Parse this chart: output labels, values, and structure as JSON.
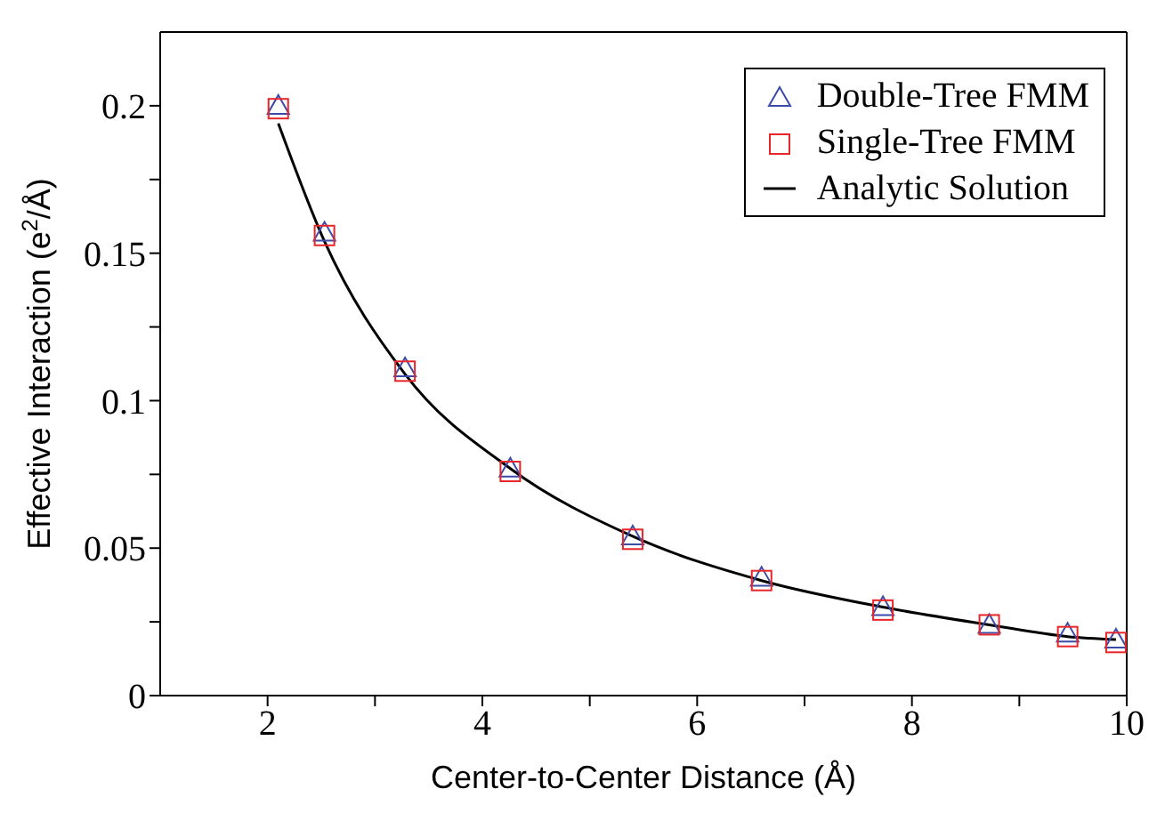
{
  "chart_data": {
    "type": "scatter",
    "xlabel": "Center-to-Center Distance (Å)",
    "ylabel": "Effective Interaction (e$^{2}$/Å)",
    "xlim": [
      1,
      10
    ],
    "ylim": [
      0,
      0.225
    ],
    "xticks": [
      2,
      {
        "value": 3,
        "label": null
      },
      4,
      {
        "value": 5,
        "label": null
      },
      6,
      {
        "value": 7,
        "label": null
      },
      8,
      {
        "value": 9,
        "label": null
      },
      10
    ],
    "yticks": [
      0,
      {
        "value": 0.025,
        "label": null
      },
      0.05,
      {
        "value": 0.075,
        "label": null
      },
      0.1,
      {
        "value": 0.125,
        "label": null
      },
      0.15,
      {
        "value": 0.175,
        "label": null
      },
      0.2
    ],
    "legend": "top right",
    "series": [
      {
        "name": "Double-Tree FMM",
        "marker": "triangle",
        "color": "#3b4ba8",
        "x": [
          2.1,
          2.53,
          3.28,
          4.26,
          5.4,
          6.6,
          7.73,
          8.72,
          9.45,
          9.9
        ],
        "values": [
          0.2,
          0.157,
          0.111,
          0.077,
          0.054,
          0.04,
          0.03,
          0.024,
          0.021,
          0.019
        ]
      },
      {
        "name": "Single-Tree FMM",
        "marker": "square",
        "color": "#e8262a",
        "x": [
          2.1,
          2.53,
          3.28,
          4.26,
          5.4,
          6.6,
          7.73,
          8.72,
          9.45,
          9.9
        ],
        "values": [
          0.199,
          0.156,
          0.11,
          0.076,
          0.053,
          0.039,
          0.029,
          0.024,
          0.02,
          0.018
        ]
      },
      {
        "name": "Analytic Solution",
        "type": "line",
        "marker": "none",
        "line_style": "solid",
        "color": "#000000",
        "x": [
          2.1,
          2.53,
          3.28,
          4.26,
          5.4,
          6.6,
          7.73,
          8.72,
          9.45,
          9.9
        ],
        "values": [
          0.194,
          0.154,
          0.109,
          0.077,
          0.054,
          0.039,
          0.03,
          0.024,
          0.02,
          0.019
        ]
      }
    ]
  }
}
